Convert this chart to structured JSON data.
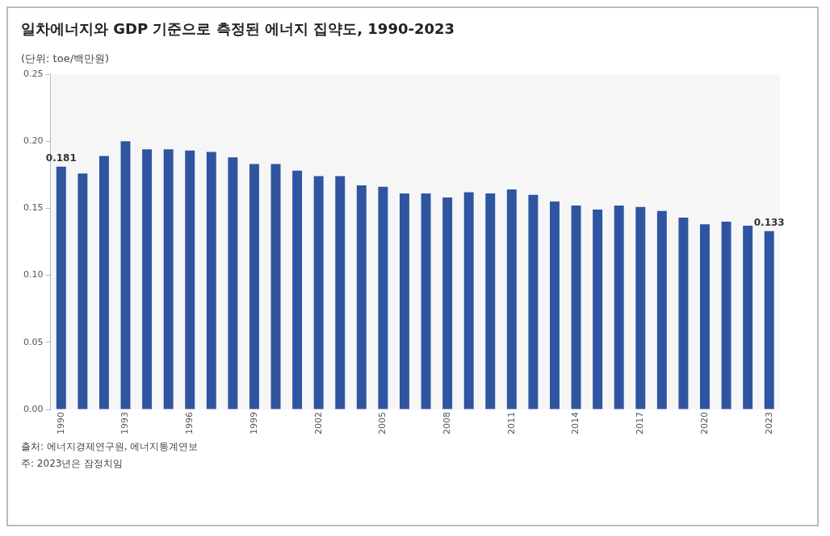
{
  "chart_data": {
    "type": "bar",
    "title": "일차에너지와 GDP 기준으로 측정된 에너지 집약도, 1990-2023",
    "ylabel": "(단위: toe/백만원)",
    "categories": [
      "1990",
      null,
      null,
      "1993",
      null,
      null,
      "1996",
      null,
      null,
      "1999",
      null,
      null,
      "2002",
      null,
      null,
      "2005",
      null,
      null,
      "2008",
      null,
      null,
      "2011",
      null,
      null,
      "2014",
      null,
      null,
      "2017",
      null,
      null,
      "2020",
      null,
      null,
      "2023"
    ],
    "values": [
      0.181,
      0.176,
      0.189,
      0.2,
      0.194,
      0.194,
      0.193,
      0.192,
      0.188,
      0.183,
      0.183,
      0.178,
      0.174,
      0.174,
      0.167,
      0.166,
      0.161,
      0.161,
      0.158,
      0.162,
      0.161,
      0.164,
      0.16,
      0.155,
      0.152,
      0.149,
      0.152,
      0.151,
      0.148,
      0.143,
      0.138,
      0.14,
      0.137,
      0.133
    ],
    "value_labels": [
      "0.181",
      null,
      null,
      null,
      null,
      null,
      null,
      null,
      null,
      null,
      null,
      null,
      null,
      null,
      null,
      null,
      null,
      null,
      null,
      null,
      null,
      null,
      null,
      null,
      null,
      null,
      null,
      null,
      null,
      null,
      null,
      null,
      null,
      "0.133"
    ],
    "color": "#2f55a0",
    "ylim": [
      0,
      0.25
    ],
    "yticks": [
      {
        "value": 0,
        "label": "0.00"
      },
      {
        "value": 0.05,
        "label": "0.05"
      },
      {
        "value": 0.1,
        "label": "0.10"
      },
      {
        "value": 0.15,
        "label": "0.15"
      },
      {
        "value": 0.2,
        "label": "0.20"
      },
      {
        "value": 0.25,
        "label": "0.25"
      }
    ],
    "grid": false,
    "legend": false,
    "annotations": [
      "출처: 에너지경제연구원, 에너지통계연보",
      "주: 2023년은 잠정치임"
    ]
  }
}
